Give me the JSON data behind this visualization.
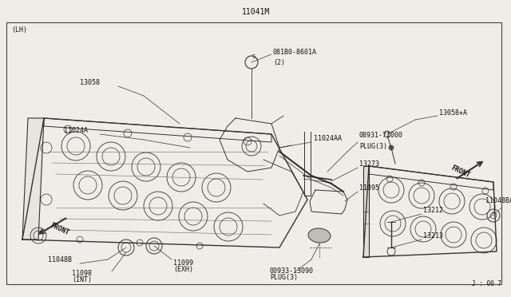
{
  "bg_color": "#f0ede8",
  "border_color": "#444444",
  "line_color": "#333333",
  "text_color": "#111111",
  "title": "11041M",
  "page_id": "J : 00 7",
  "lh_label": "(LH)",
  "fig_width": 6.4,
  "fig_height": 3.72,
  "dpi": 100
}
